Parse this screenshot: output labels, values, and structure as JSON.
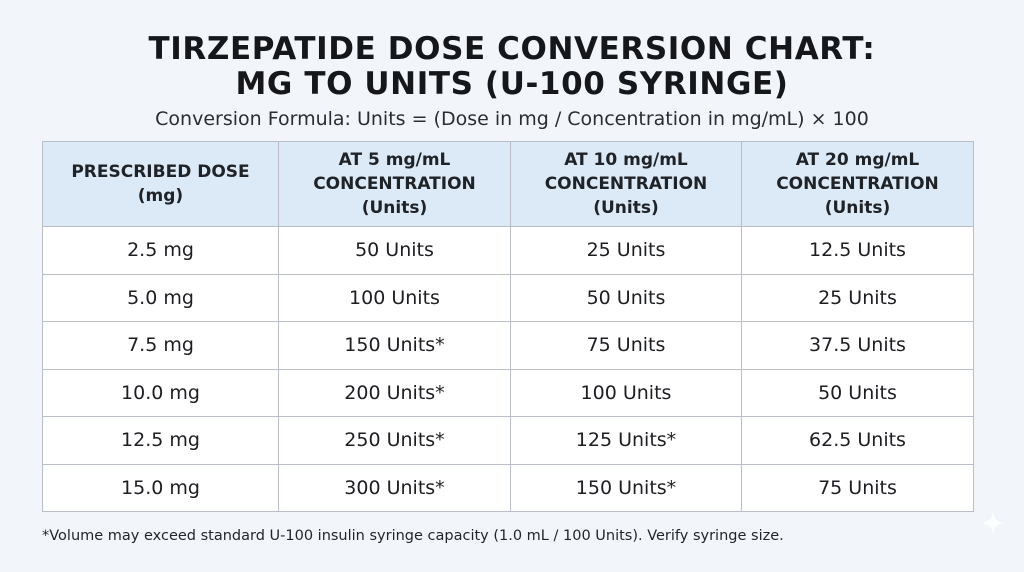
{
  "header": {
    "title_line1": "TIRZEPATIDE DOSE CONVERSION CHART:",
    "title_line2": "MG TO UNITS (U-100 SYRINGE)",
    "formula": "Conversion Formula: Units = (Dose in mg / Concentration in mg/mL) × 100"
  },
  "table": {
    "headers": [
      [
        "PRESCRIBED DOSE",
        "(mg)"
      ],
      [
        "AT 5 mg/mL",
        "CONCENTRATION",
        "(Units)"
      ],
      [
        "AT 10 mg/mL",
        "CONCENTRATION",
        "(Units)"
      ],
      [
        "AT 20 mg/mL",
        "CONCENTRATION",
        "(Units)"
      ]
    ],
    "rows": [
      [
        "2.5 mg",
        "50 Units",
        "25 Units",
        "12.5 Units"
      ],
      [
        "5.0 mg",
        "100 Units",
        "50 Units",
        "25 Units"
      ],
      [
        "7.5 mg",
        "150 Units*",
        "75 Units",
        "37.5 Units"
      ],
      [
        "10.0 mg",
        "200 Units*",
        "100 Units",
        "50 Units"
      ],
      [
        "12.5 mg",
        "250 Units*",
        "125 Units*",
        "62.5 Units"
      ],
      [
        "15.0 mg",
        "300 Units*",
        "150 Units*",
        "75 Units"
      ]
    ]
  },
  "footnote": "*Volume may exceed standard U-100 insulin syringe capacity (1.0 mL / 100 Units). Verify syringe size.",
  "colors": {
    "header_bg": "#dce9f6",
    "page_bg": "#f2f6fa",
    "border": "#b9bec6"
  },
  "icons": {
    "corner": "sparkle-icon"
  }
}
